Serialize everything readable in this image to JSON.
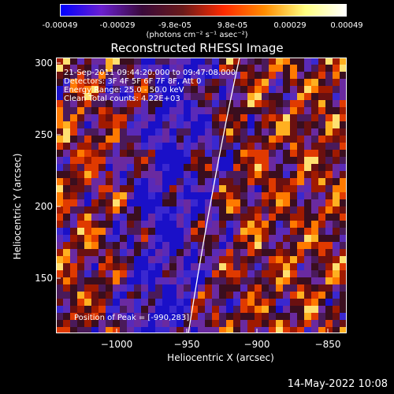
{
  "colorbar": {
    "ticks": [
      "-0.00049",
      "-0.00029",
      "-9.8e-05",
      "9.8e-05",
      "0.00029",
      "0.00049"
    ],
    "unit_label": "(photons cm⁻² s⁻¹ asec⁻²)",
    "colors": [
      "#0000ff",
      "#6a1fd0",
      "#3a0a3a",
      "#6a1a1a",
      "#ff2a00",
      "#ff8c00",
      "#ffff80",
      "#ffffff"
    ]
  },
  "plot": {
    "title": "Reconstructed RHESSI Image",
    "xlabel": "Heliocentric X (arcsec)",
    "ylabel": "Heliocentric Y (arcsec)",
    "xticks": [
      "−1000",
      "−950",
      "−900",
      "−850"
    ],
    "yticks": [
      "300",
      "250",
      "200",
      "150"
    ],
    "xlim": [
      -1040,
      -840
    ],
    "ylim": [
      110,
      305
    ],
    "annotations": {
      "time": "21-Sep-2011 09:44:20.000 to 09:47:08.000",
      "detectors": "Detectors: 3F 4F 5F 6F 7F 8F, Att 0",
      "energy": "Energy Range: 25.0 - 50.0 keV",
      "clean": "Clean    Total counts: 4.22E+03",
      "peak": "Position of Peak = [-990,283]"
    }
  },
  "date_stamp": "14-May-2022 10:08",
  "chart_data": {
    "type": "heatmap",
    "title": "Reconstructed RHESSI Image",
    "xlabel": "Heliocentric X (arcsec)",
    "ylabel": "Heliocentric Y (arcsec)",
    "xlim": [
      -1040,
      -840
    ],
    "ylim": [
      110,
      305
    ],
    "xticks": [
      -1000,
      -950,
      -900,
      -850
    ],
    "yticks": [
      150,
      200,
      250,
      300
    ],
    "colorbar_range": [
      -0.00049,
      0.00049
    ],
    "peak": [
      -990,
      283
    ],
    "limb_line": true
  }
}
